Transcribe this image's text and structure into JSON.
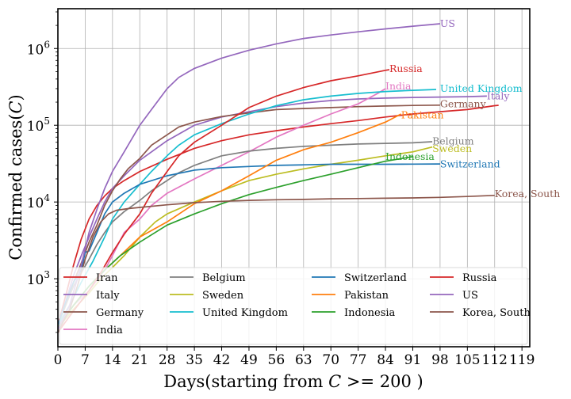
{
  "chart_data": {
    "type": "line",
    "xlabel_parts": [
      "Days(starting from ",
      "C",
      " >= 200 )"
    ],
    "ylabel_parts": [
      "Confirmed cases(",
      "C",
      ")"
    ],
    "x_scale": "linear",
    "y_scale": "log",
    "xlim": [
      0,
      121
    ],
    "ylim": [
      130,
      3300000
    ],
    "x_ticks": [
      0,
      7,
      14,
      21,
      28,
      35,
      42,
      49,
      56,
      63,
      70,
      77,
      84,
      91,
      98,
      105,
      112,
      119
    ],
    "y_ticks": [
      {
        "value": 1000,
        "base": "10",
        "exp": "3"
      },
      {
        "value": 10000,
        "base": "10",
        "exp": "4"
      },
      {
        "value": 100000,
        "base": "10",
        "exp": "5"
      },
      {
        "value": 1000000,
        "base": "10",
        "exp": "6"
      }
    ],
    "grid": true,
    "legend_position": "lower-center",
    "legend_columns": 4,
    "series": [
      {
        "name": "Iran",
        "color": "#d62728",
        "label_color": "#d62728",
        "points": [
          [
            0,
            250
          ],
          [
            2,
            600
          ],
          [
            4,
            1500
          ],
          [
            6,
            3300
          ],
          [
            8,
            6000
          ],
          [
            10,
            9000
          ],
          [
            12,
            12000
          ],
          [
            14,
            15000
          ],
          [
            17,
            19000
          ],
          [
            21,
            25000
          ],
          [
            28,
            36000
          ],
          [
            35,
            50000
          ],
          [
            42,
            63000
          ],
          [
            49,
            75000
          ],
          [
            56,
            85000
          ],
          [
            63,
            95000
          ],
          [
            70,
            105000
          ],
          [
            77,
            115000
          ],
          [
            84,
            128000
          ],
          [
            91,
            140000
          ],
          [
            98,
            150000
          ],
          [
            105,
            160000
          ],
          [
            112,
            180000
          ],
          [
            113,
            182000
          ]
        ],
        "end_label": "Iran",
        "label_pos": [
          113,
          185000
        ],
        "show_label": false
      },
      {
        "name": "Italy",
        "color": "#9467bd",
        "label_color": "#9467bd",
        "points": [
          [
            0,
            250
          ],
          [
            2,
            500
          ],
          [
            4,
            1100
          ],
          [
            6,
            2000
          ],
          [
            8,
            3500
          ],
          [
            10,
            6000
          ],
          [
            12,
            10000
          ],
          [
            14,
            15000
          ],
          [
            17,
            22000
          ],
          [
            21,
            35000
          ],
          [
            28,
            63000
          ],
          [
            35,
            100000
          ],
          [
            42,
            128000
          ],
          [
            49,
            150000
          ],
          [
            56,
            175000
          ],
          [
            63,
            195000
          ],
          [
            70,
            210000
          ],
          [
            77,
            220000
          ],
          [
            84,
            226000
          ],
          [
            91,
            230000
          ],
          [
            98,
            233000
          ],
          [
            105,
            236000
          ],
          [
            110,
            240000
          ]
        ],
        "end_label": "Italy",
        "label_pos": [
          110,
          240000
        ]
      },
      {
        "name": "Germany",
        "color": "#8c564b",
        "label_color": "#8c564b",
        "points": [
          [
            0,
            250
          ],
          [
            2,
            450
          ],
          [
            4,
            900
          ],
          [
            6,
            1600
          ],
          [
            8,
            3000
          ],
          [
            10,
            5000
          ],
          [
            12,
            9000
          ],
          [
            14,
            14000
          ],
          [
            16,
            20000
          ],
          [
            18,
            27000
          ],
          [
            21,
            37000
          ],
          [
            24,
            55000
          ],
          [
            28,
            75000
          ],
          [
            31,
            95000
          ],
          [
            35,
            110000
          ],
          [
            42,
            130000
          ],
          [
            49,
            145000
          ],
          [
            56,
            160000
          ],
          [
            63,
            165000
          ],
          [
            70,
            170000
          ],
          [
            77,
            175000
          ],
          [
            84,
            178000
          ],
          [
            91,
            181000
          ],
          [
            98,
            183000
          ]
        ],
        "end_label": "Germany",
        "label_pos": [
          98,
          188000
        ]
      },
      {
        "name": "India",
        "color": "#e377c2",
        "label_color": "#e377c2",
        "points": [
          [
            0,
            250
          ],
          [
            4,
            450
          ],
          [
            8,
            700
          ],
          [
            12,
            1300
          ],
          [
            14,
            2000
          ],
          [
            17,
            4000
          ],
          [
            21,
            6000
          ],
          [
            24,
            9000
          ],
          [
            28,
            13000
          ],
          [
            35,
            20000
          ],
          [
            42,
            30000
          ],
          [
            49,
            45000
          ],
          [
            56,
            70000
          ],
          [
            63,
            100000
          ],
          [
            70,
            140000
          ],
          [
            77,
            190000
          ],
          [
            82,
            260000
          ],
          [
            84,
            300000
          ]
        ],
        "end_label": "India",
        "label_pos": [
          84,
          320000
        ]
      },
      {
        "name": "Belgium",
        "color": "#7f7f7f",
        "label_color": "#7f7f7f",
        "points": [
          [
            0,
            250
          ],
          [
            2,
            450
          ],
          [
            4,
            800
          ],
          [
            6,
            1200
          ],
          [
            8,
            1800
          ],
          [
            10,
            2800
          ],
          [
            12,
            4000
          ],
          [
            14,
            5500
          ],
          [
            17,
            7500
          ],
          [
            21,
            10500
          ],
          [
            24,
            14000
          ],
          [
            28,
            19000
          ],
          [
            31,
            24000
          ],
          [
            35,
            30000
          ],
          [
            42,
            40000
          ],
          [
            49,
            46000
          ],
          [
            56,
            50000
          ],
          [
            63,
            53000
          ],
          [
            70,
            55000
          ],
          [
            77,
            57000
          ],
          [
            84,
            58000
          ],
          [
            91,
            59000
          ],
          [
            96,
            61000
          ]
        ],
        "end_label": "Belgium",
        "label_pos": [
          96,
          62000
        ]
      },
      {
        "name": "Sweden",
        "color": "#bcbd22",
        "label_color": "#bcbd22",
        "points": [
          [
            0,
            230
          ],
          [
            4,
            400
          ],
          [
            8,
            650
          ],
          [
            11,
            1000
          ],
          [
            14,
            1400
          ],
          [
            17,
            2000
          ],
          [
            21,
            3500
          ],
          [
            25,
            5500
          ],
          [
            28,
            7000
          ],
          [
            35,
            10000
          ],
          [
            42,
            14000
          ],
          [
            49,
            19000
          ],
          [
            56,
            23000
          ],
          [
            63,
            27000
          ],
          [
            70,
            31000
          ],
          [
            77,
            35000
          ],
          [
            84,
            40000
          ],
          [
            91,
            45000
          ],
          [
            96,
            52000
          ]
        ],
        "end_label": "Sweden",
        "label_pos": [
          96,
          49000
        ]
      },
      {
        "name": "United Kingdom",
        "color": "#17becf",
        "label_color": "#17becf",
        "points": [
          [
            0,
            250
          ],
          [
            3,
            450
          ],
          [
            6,
            900
          ],
          [
            9,
            1700
          ],
          [
            12,
            3500
          ],
          [
            14,
            6000
          ],
          [
            17,
            10000
          ],
          [
            21,
            17000
          ],
          [
            24,
            25000
          ],
          [
            28,
            40000
          ],
          [
            31,
            55000
          ],
          [
            35,
            75000
          ],
          [
            42,
            105000
          ],
          [
            49,
            140000
          ],
          [
            56,
            180000
          ],
          [
            63,
            215000
          ],
          [
            70,
            240000
          ],
          [
            77,
            260000
          ],
          [
            84,
            275000
          ],
          [
            91,
            285000
          ],
          [
            97,
            293000
          ]
        ],
        "end_label": "United Kingdom",
        "label_pos": [
          98,
          300000
        ]
      },
      {
        "name": "Switzerland",
        "color": "#1f77b4",
        "label_color": "#1f77b4",
        "points": [
          [
            0,
            250
          ],
          [
            2,
            500
          ],
          [
            4,
            900
          ],
          [
            6,
            1300
          ],
          [
            7,
            2200
          ],
          [
            8,
            2300
          ],
          [
            10,
            4000
          ],
          [
            12,
            7000
          ],
          [
            14,
            10000
          ],
          [
            17,
            13000
          ],
          [
            21,
            17000
          ],
          [
            28,
            22000
          ],
          [
            35,
            26000
          ],
          [
            42,
            28000
          ],
          [
            49,
            29000
          ],
          [
            56,
            30000
          ],
          [
            63,
            30500
          ],
          [
            70,
            31000
          ],
          [
            77,
            31000
          ],
          [
            84,
            31000
          ],
          [
            91,
            31200
          ],
          [
            98,
            31300
          ]
        ],
        "end_label": "Switzerland",
        "label_pos": [
          98,
          31000
        ]
      },
      {
        "name": "Pakistan",
        "color": "#ff7f0e",
        "label_color": "#ff7f0e",
        "points": [
          [
            0,
            230
          ],
          [
            4,
            450
          ],
          [
            8,
            800
          ],
          [
            12,
            1300
          ],
          [
            16,
            2000
          ],
          [
            21,
            3500
          ],
          [
            28,
            5500
          ],
          [
            35,
            9500
          ],
          [
            42,
            14000
          ],
          [
            49,
            22000
          ],
          [
            56,
            35000
          ],
          [
            63,
            48000
          ],
          [
            70,
            60000
          ],
          [
            77,
            80000
          ],
          [
            84,
            110000
          ],
          [
            88,
            140000
          ]
        ],
        "end_label": "Pakistan",
        "label_pos": [
          88,
          135000
        ]
      },
      {
        "name": "Indonesia",
        "color": "#2ca02c",
        "label_color": "#2ca02c",
        "points": [
          [
            0,
            230
          ],
          [
            4,
            450
          ],
          [
            8,
            800
          ],
          [
            12,
            1300
          ],
          [
            16,
            2000
          ],
          [
            21,
            3000
          ],
          [
            28,
            5000
          ],
          [
            35,
            7000
          ],
          [
            42,
            9500
          ],
          [
            49,
            12500
          ],
          [
            56,
            15500
          ],
          [
            63,
            19000
          ],
          [
            70,
            23000
          ],
          [
            77,
            28000
          ],
          [
            84,
            34000
          ],
          [
            91,
            39000
          ]
        ],
        "end_label": "Indonesia",
        "label_pos": [
          84,
          39000
        ]
      },
      {
        "name": "Russia",
        "color": "#d62728",
        "label_color": "#d62728",
        "points": [
          [
            0,
            200
          ],
          [
            4,
            380
          ],
          [
            8,
            700
          ],
          [
            11,
            1200
          ],
          [
            14,
            2200
          ],
          [
            17,
            3800
          ],
          [
            21,
            7000
          ],
          [
            24,
            13000
          ],
          [
            28,
            25000
          ],
          [
            31,
            40000
          ],
          [
            35,
            60000
          ],
          [
            42,
            100000
          ],
          [
            49,
            170000
          ],
          [
            56,
            240000
          ],
          [
            63,
            310000
          ],
          [
            70,
            380000
          ],
          [
            77,
            440000
          ],
          [
            84,
            520000
          ],
          [
            85,
            530000
          ]
        ],
        "end_label": "Russia",
        "label_pos": [
          85,
          540000
        ]
      },
      {
        "name": "US",
        "color": "#9467bd",
        "label_color": "#9467bd",
        "points": [
          [
            0,
            220
          ],
          [
            3,
            450
          ],
          [
            6,
            1500
          ],
          [
            8,
            4000
          ],
          [
            10,
            8000
          ],
          [
            12,
            15000
          ],
          [
            14,
            25000
          ],
          [
            17,
            45000
          ],
          [
            21,
            100000
          ],
          [
            24,
            160000
          ],
          [
            28,
            300000
          ],
          [
            31,
            420000
          ],
          [
            35,
            550000
          ],
          [
            42,
            750000
          ],
          [
            49,
            950000
          ],
          [
            56,
            1150000
          ],
          [
            63,
            1350000
          ],
          [
            70,
            1500000
          ],
          [
            77,
            1650000
          ],
          [
            84,
            1800000
          ],
          [
            91,
            1950000
          ],
          [
            98,
            2100000
          ]
        ],
        "end_label": "US",
        "label_pos": [
          98,
          2100000
        ]
      },
      {
        "name": "Korea, South",
        "color": "#8c564b",
        "label_color": "#8c564b",
        "points": [
          [
            0,
            200
          ],
          [
            3,
            400
          ],
          [
            5,
            800
          ],
          [
            7,
            1800
          ],
          [
            9,
            3500
          ],
          [
            11,
            5500
          ],
          [
            13,
            7000
          ],
          [
            15,
            7800
          ],
          [
            18,
            8200
          ],
          [
            21,
            8500
          ],
          [
            28,
            9200
          ],
          [
            35,
            9800
          ],
          [
            42,
            10200
          ],
          [
            49,
            10500
          ],
          [
            56,
            10700
          ],
          [
            63,
            10800
          ],
          [
            70,
            11000
          ],
          [
            77,
            11100
          ],
          [
            84,
            11200
          ],
          [
            91,
            11300
          ],
          [
            98,
            11500
          ],
          [
            105,
            11800
          ],
          [
            112,
            12200
          ]
        ],
        "end_label": "Korea, South",
        "label_pos": [
          112,
          12800
        ]
      }
    ]
  }
}
